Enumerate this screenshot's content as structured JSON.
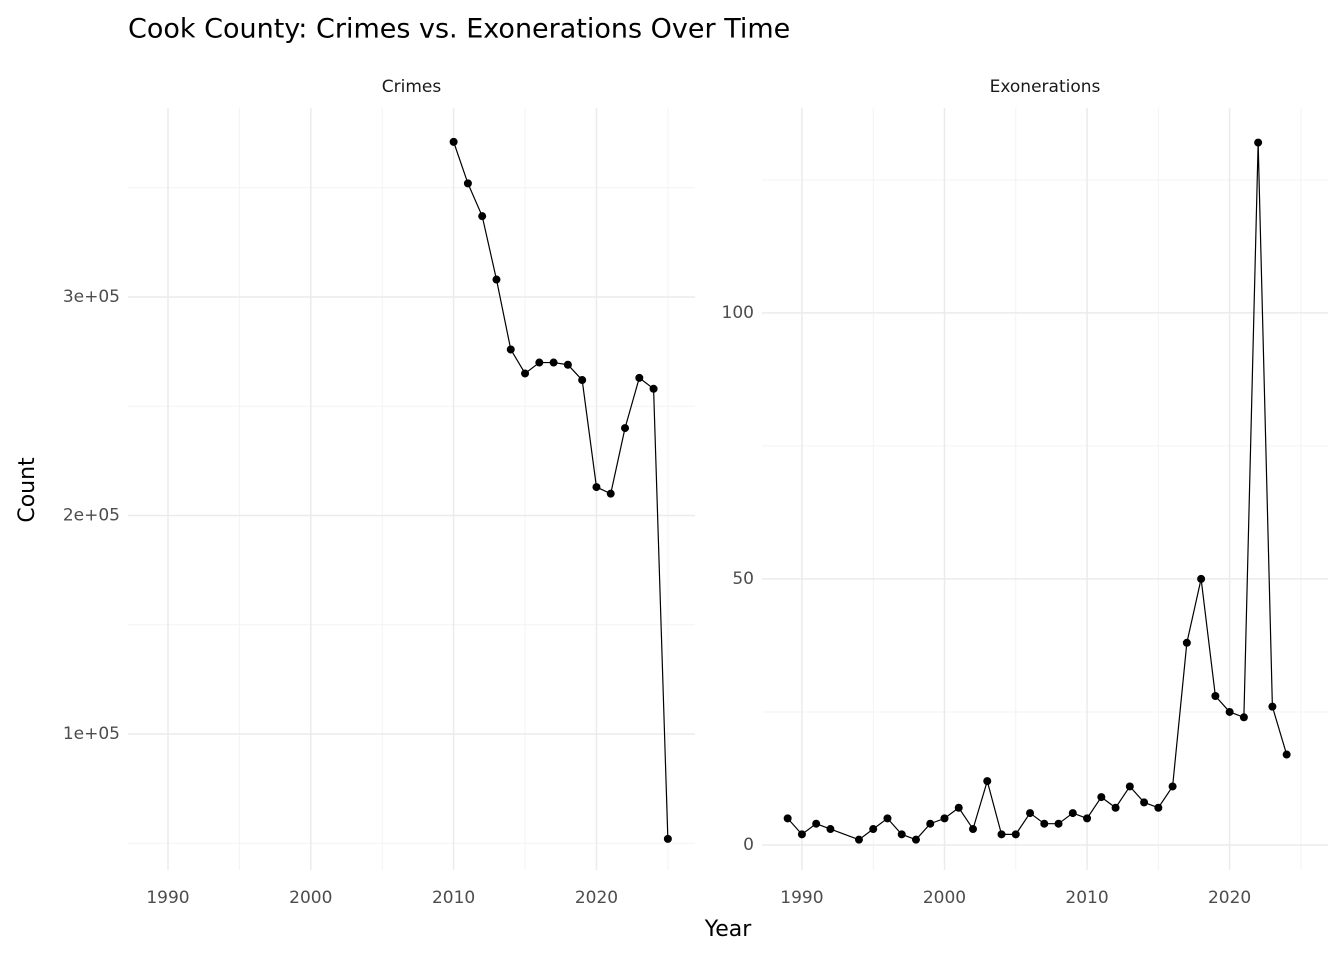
{
  "title": "Cook County: Crimes vs. Exonerations Over Time",
  "xlabel": "Year",
  "ylabel": "Count",
  "chart_data": [
    {
      "type": "line",
      "title": "Crimes",
      "x": [
        2010,
        2011,
        2012,
        2013,
        2014,
        2015,
        2016,
        2017,
        2018,
        2019,
        2020,
        2021,
        2022,
        2023,
        2024,
        2025
      ],
      "values": [
        371000,
        352000,
        337000,
        308000,
        276000,
        265000,
        270000,
        270000,
        269000,
        262000,
        213000,
        210000,
        240000,
        263000,
        258000,
        52000
      ],
      "color": "#000000",
      "xlim": [
        1987.2,
        2026.9
      ],
      "xticks": [
        1990,
        2000,
        2010,
        2020
      ],
      "xminor": [
        1995,
        2005,
        2015,
        2025
      ],
      "ylim": [
        37760,
        386500
      ],
      "yticks": [
        {
          "value": 100000,
          "label": "1e+05"
        },
        {
          "value": 200000,
          "label": "2e+05"
        },
        {
          "value": 300000,
          "label": "3e+05"
        }
      ],
      "yminor": [
        50000,
        150000,
        250000,
        350000
      ],
      "grid": true
    },
    {
      "type": "line",
      "title": "Exonerations",
      "x": [
        1989,
        1990,
        1991,
        1992,
        1994,
        1995,
        1996,
        1997,
        1998,
        1999,
        2000,
        2001,
        2002,
        2003,
        2004,
        2005,
        2006,
        2007,
        2008,
        2009,
        2010,
        2011,
        2012,
        2013,
        2014,
        2015,
        2016,
        2017,
        2018,
        2019,
        2020,
        2021,
        2022,
        2023,
        2024
      ],
      "values": [
        5,
        2,
        4,
        3,
        1,
        3,
        5,
        2,
        1,
        4,
        5,
        7,
        3,
        12,
        2,
        2,
        6,
        4,
        4,
        6,
        5,
        9,
        7,
        11,
        8,
        7,
        11,
        38,
        50,
        28,
        25,
        24,
        132,
        26,
        17
      ],
      "color": "#000000",
      "xlim": [
        1987.2,
        2026.9
      ],
      "xticks": [
        1990,
        2000,
        2010,
        2020
      ],
      "xminor": [
        1995,
        2005,
        2015,
        2025
      ],
      "ylim": [
        -4.7,
        138.5
      ],
      "yticks": [
        0,
        50,
        100
      ],
      "yminor": [
        25,
        75,
        125
      ],
      "grid": true
    }
  ]
}
